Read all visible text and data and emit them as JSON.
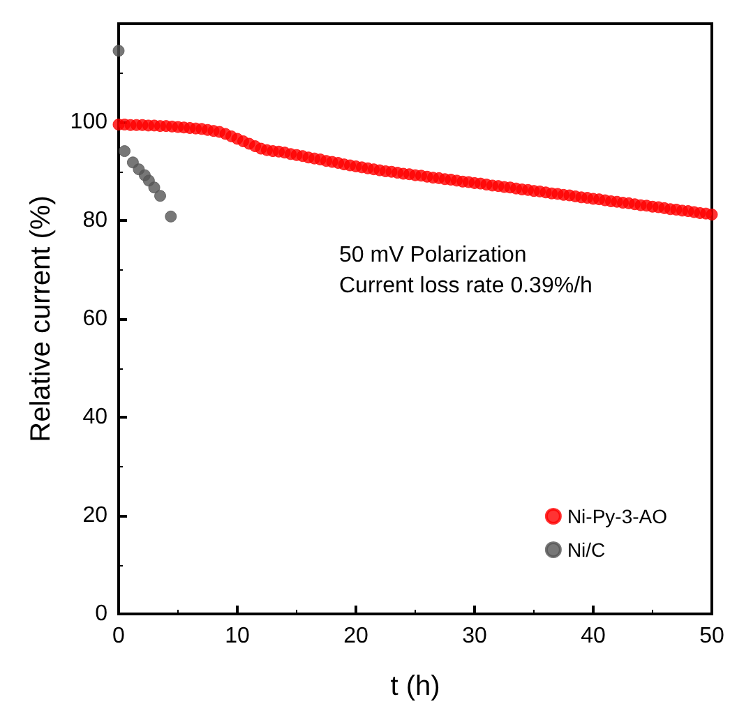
{
  "chart_data": {
    "type": "scatter",
    "xlabel": "t (h)",
    "ylabel": "Relative current (%)",
    "xlim": [
      0,
      50
    ],
    "xticks": [
      0,
      10,
      20,
      30,
      40,
      50
    ],
    "ylim": [
      0,
      120
    ],
    "yticks": [
      0,
      20,
      40,
      60,
      80,
      100
    ],
    "annotations": [
      "50 mV Polarization",
      "Current loss rate 0.39%/h"
    ],
    "legend": "bottom right",
    "marker": "circle",
    "grid": false,
    "series": [
      {
        "name": "Ni-Py-3-AO",
        "color": "#ff0000",
        "x": [
          0,
          0.5,
          1,
          1.5,
          2,
          2.5,
          3,
          3.5,
          4,
          4.5,
          5,
          5.5,
          6,
          6.5,
          7,
          7.5,
          8,
          8.5,
          9,
          9.5,
          10,
          10.5,
          11,
          11.5,
          12,
          12.5,
          13,
          13.5,
          14,
          14.5,
          15,
          15.5,
          16,
          16.5,
          17,
          17.5,
          18,
          18.5,
          19,
          19.5,
          20,
          20.5,
          21,
          21.5,
          22,
          22.5,
          23,
          23.5,
          24,
          24.5,
          25,
          25.5,
          26,
          26.5,
          27,
          27.5,
          28,
          28.5,
          29,
          29.5,
          30,
          30.5,
          31,
          31.5,
          32,
          32.5,
          33,
          33.5,
          34,
          34.5,
          35,
          35.5,
          36,
          36.5,
          37,
          37.5,
          38,
          38.5,
          39,
          39.5,
          40,
          40.5,
          41,
          41.5,
          42,
          42.5,
          43,
          43.5,
          44,
          44.5,
          45,
          45.5,
          46,
          46.5,
          47,
          47.5,
          48,
          48.5,
          49,
          49.5,
          50
        ],
        "values": [
          99.5,
          99.5,
          99.4,
          99.4,
          99.4,
          99.3,
          99.3,
          99.2,
          99.2,
          99.1,
          99.0,
          98.9,
          98.8,
          98.7,
          98.6,
          98.4,
          98.2,
          98.0,
          97.6,
          97.1,
          96.6,
          96.1,
          95.6,
          95.1,
          94.6,
          94.3,
          94.1,
          94.0,
          93.8,
          93.5,
          93.3,
          93.1,
          92.8,
          92.6,
          92.4,
          92.1,
          91.9,
          91.7,
          91.4,
          91.2,
          91.0,
          90.8,
          90.6,
          90.4,
          90.2,
          90.0,
          89.9,
          89.7,
          89.5,
          89.4,
          89.2,
          89.1,
          88.9,
          88.7,
          88.6,
          88.4,
          88.3,
          88.1,
          87.9,
          87.8,
          87.6,
          87.5,
          87.3,
          87.1,
          87.0,
          86.8,
          86.7,
          86.5,
          86.3,
          86.2,
          86.0,
          85.9,
          85.7,
          85.5,
          85.4,
          85.2,
          85.1,
          84.9,
          84.7,
          84.6,
          84.4,
          84.3,
          84.1,
          83.9,
          83.8,
          83.6,
          83.5,
          83.3,
          83.1,
          83.0,
          82.8,
          82.7,
          82.5,
          82.3,
          82.2,
          82.0,
          81.9,
          81.7,
          81.5,
          81.4,
          81.2
        ]
      },
      {
        "name": "Ni/C",
        "color": "#555555",
        "x": [
          0,
          0.5,
          1.2,
          1.7,
          2.2,
          2.55,
          3.0,
          3.5,
          4.4
        ],
        "values": [
          114.5,
          94.1,
          91.8,
          90.4,
          89.2,
          88.1,
          86.7,
          85.0,
          80.8
        ]
      }
    ]
  }
}
